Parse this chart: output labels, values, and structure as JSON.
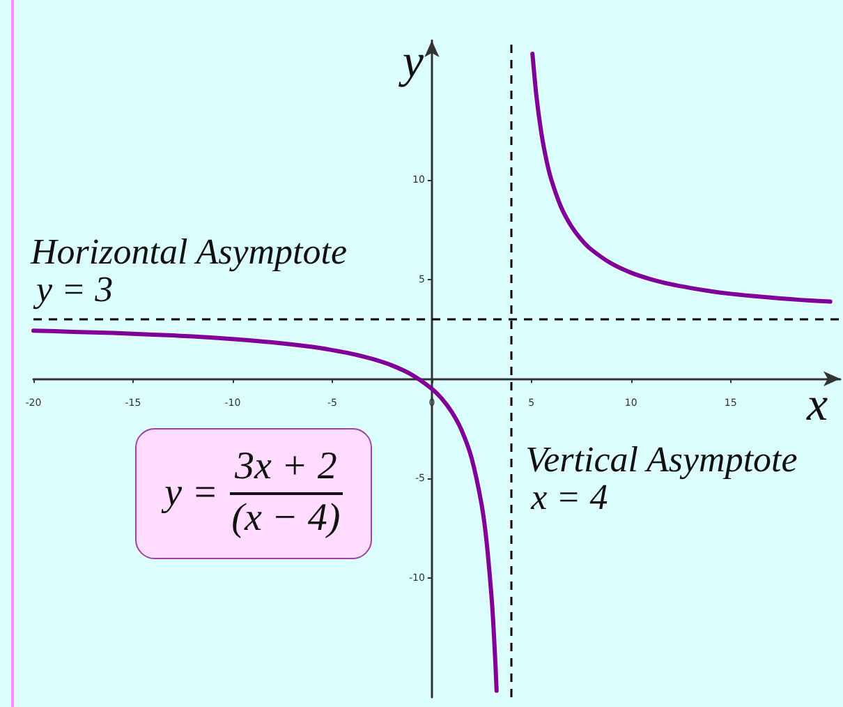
{
  "chart_data": {
    "type": "line",
    "xlabel": "x",
    "ylabel": "y",
    "series": [
      {
        "color": "#800099",
        "x": [
          -20,
          -18,
          -16,
          -14,
          -12,
          -10,
          -8,
          -6,
          -5,
          -4,
          -3,
          -2,
          -1,
          0,
          0.5,
          1,
          1.5,
          2,
          2.5,
          2.75,
          3,
          3.1,
          3.2,
          3.25
        ],
        "values": [
          2.42,
          2.36,
          2.3,
          2.22,
          2.13,
          2,
          1.83,
          1.6,
          1.44,
          1.25,
          1,
          0.67,
          0.2,
          -0.5,
          -1,
          -1.67,
          -2.6,
          -4,
          -6.33,
          -8.2,
          -11,
          -12.56,
          -14.5,
          -15.67
        ]
      },
      {
        "color": "#800099",
        "x": [
          5.05,
          5.25,
          5.5,
          5.75,
          6,
          6.5,
          7,
          7.5,
          8,
          9,
          10,
          11,
          12,
          13,
          14,
          15,
          16,
          17,
          18,
          19,
          20
        ],
        "values": [
          16.33,
          14.2,
          12.33,
          11,
          10,
          8.6,
          7.67,
          7,
          6.5,
          5.8,
          5.33,
          5,
          4.75,
          4.56,
          4.4,
          4.27,
          4.17,
          4.08,
          4,
          3.93,
          3.88
        ]
      }
    ],
    "xlim": [
      -20,
      20.5
    ],
    "ylim": [
      -16,
      17
    ],
    "xticks": [
      -20,
      -15,
      -10,
      -5,
      0,
      5,
      10,
      15
    ],
    "yticks": [
      -10,
      -5,
      5,
      10
    ],
    "ref_lines": [
      {
        "axis": "y",
        "value": 3,
        "label": "Horizontal Asymptote\ny = 3",
        "color": "#000000",
        "line_style": "dashed"
      },
      {
        "axis": "x",
        "value": 4,
        "label": "Vertical Asymptote\nx = 4",
        "color": "#000000",
        "line_style": "dashed"
      }
    ],
    "annotations": [
      "y = 3x + 2\n(x − 4)"
    ],
    "grid": false,
    "marker": "none",
    "line_style": "solid"
  }
}
